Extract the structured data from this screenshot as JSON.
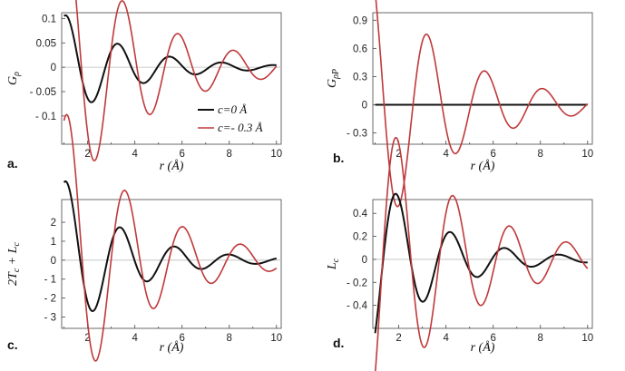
{
  "colors": {
    "black_series": "#111111",
    "red_series": "#c0393b",
    "axis": "#444444"
  },
  "chart_data": [
    {
      "type": "line",
      "panel_label": "a.",
      "xlabel": "r (Å)",
      "ylabel": "G",
      "ylabel_sub": "ρ",
      "xlim": [
        0.9,
        10.2
      ],
      "ylim": [
        -0.158,
        0.112
      ],
      "xticks": [
        2,
        4,
        6,
        8,
        10
      ],
      "yticks": [
        0.1,
        0.05,
        0,
        -0.05,
        -0.1
      ],
      "ytick_labels": [
        "0.1",
        "0.05",
        "0",
        "- 0.05",
        "- 0.1"
      ],
      "zero_line": true,
      "legend": {
        "position": "lower-right",
        "entries": [
          "c=0 Å",
          "c=- 0.3 Å"
        ]
      },
      "series": [
        {
          "name": "c=0 Å",
          "color": "black",
          "model": {
            "a": 0.11,
            "phase": -0.3,
            "T": 2.2,
            "decay": 0.36
          }
        },
        {
          "name": "c=- 0.3 Å",
          "color": "red",
          "model": {
            "a": 0.28,
            "phase": -0.4,
            "T": 2.35,
            "decay": 0.29
          }
        }
      ]
    },
    {
      "type": "line",
      "panel_label": "b.",
      "xlabel": "r (Å)",
      "ylabel": "G",
      "ylabel_sub": "ρP",
      "xlim": [
        0.9,
        10.2
      ],
      "ylim": [
        -0.42,
        0.98
      ],
      "xticks": [
        2,
        4,
        6,
        8,
        10
      ],
      "yticks": [
        0.9,
        0.6,
        0.3,
        0,
        -0.3
      ],
      "ytick_labels": [
        "0.9",
        "0.6",
        "0.3",
        "0",
        "- 0.3"
      ],
      "zero_line": false,
      "series": [
        {
          "name": "c=0 Å",
          "color": "black",
          "model": {
            "a": 0,
            "phase": 0,
            "T": 2.4,
            "decay": 0.2
          }
        },
        {
          "name": "c=- 0.3 Å",
          "color": "red",
          "model": {
            "a": 1.45,
            "phase": 0.6,
            "T": 2.45,
            "decay": 0.3
          }
        }
      ]
    },
    {
      "type": "line",
      "panel_label": "c.",
      "xlabel": "r (Å)",
      "ylabel": "2T",
      "ylabel_sub": "c",
      "ylabel_suffix": " + L",
      "ylabel_suffix_sub": "c",
      "xlim": [
        0.9,
        10.2
      ],
      "ylim": [
        -3.6,
        3.2
      ],
      "xticks": [
        2,
        4,
        6,
        8,
        10
      ],
      "yticks": [
        2,
        1,
        0,
        -1,
        -2,
        -3
      ],
      "ytick_labels": [
        "2",
        "1",
        "0",
        "- 1",
        "- 2",
        "- 3"
      ],
      "zero_line": true,
      "series": [
        {
          "name": "c=0 Å",
          "color": "black",
          "model": {
            "a": 4.3,
            "phase": -0.3,
            "T": 2.3,
            "decay": 0.38
          }
        },
        {
          "name": "c=- 0.3 Å",
          "color": "red",
          "model": {
            "a": 8.0,
            "phase": -0.4,
            "T": 2.45,
            "decay": 0.3
          }
        }
      ]
    },
    {
      "type": "line",
      "panel_label": "d.",
      "xlabel": "r (Å)",
      "ylabel": "L",
      "ylabel_sub": "c",
      "xlim": [
        0.9,
        10.2
      ],
      "ylim": [
        -0.6,
        0.52
      ],
      "xticks": [
        2,
        4,
        6,
        8,
        10
      ],
      "yticks": [
        0.4,
        0.2,
        0,
        -0.2,
        -0.4
      ],
      "ytick_labels": [
        "0.4",
        "0.2",
        "0",
        "- 0.2",
        "- 0.4"
      ],
      "zero_line": true,
      "series": [
        {
          "name": "c=0 Å",
          "color": "black",
          "model": {
            "a": 0.8,
            "phase": -2.5,
            "T": 2.3,
            "decay": 0.38
          }
        },
        {
          "name": "c=- 0.3 Å",
          "color": "red",
          "model": {
            "a": 1.35,
            "phase": -2.4,
            "T": 2.4,
            "decay": 0.27
          }
        }
      ]
    }
  ]
}
